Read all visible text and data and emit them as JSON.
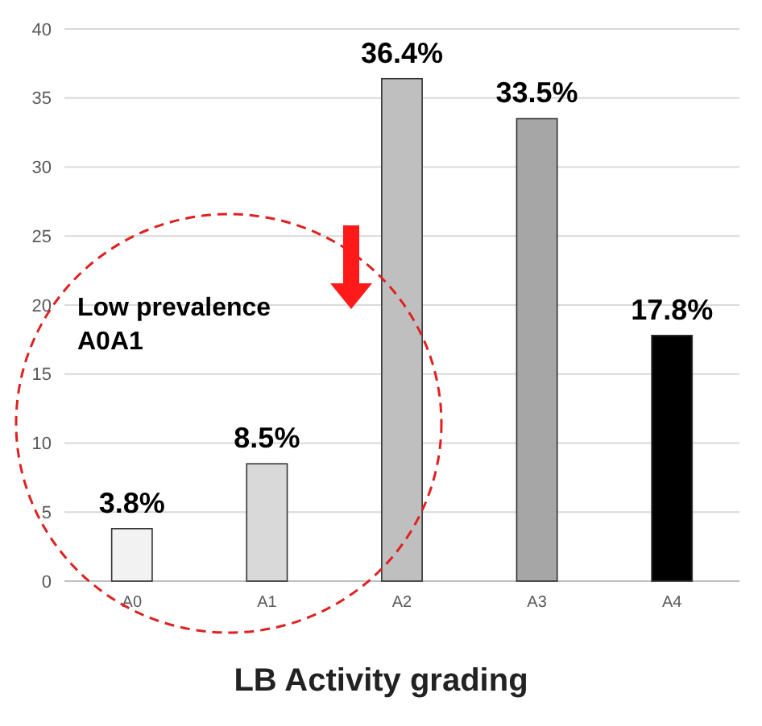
{
  "chart_data": {
    "type": "bar",
    "title": "LB Activity grading",
    "categories": [
      "A0",
      "A1",
      "A2",
      "A3",
      "A4"
    ],
    "values": [
      3.8,
      8.5,
      36.4,
      33.5,
      17.8
    ],
    "colors": [
      "#f2f2f2",
      "#d9d9d9",
      "#bfbfbf",
      "#a6a6a6",
      "#000000"
    ],
    "value_labels": [
      "3.8%",
      "8.5%",
      "36.4%",
      "33.5%",
      "17.8%"
    ],
    "ylim": [
      0,
      40
    ],
    "yticks": [
      0,
      5,
      10,
      15,
      20,
      25,
      30,
      35,
      40
    ],
    "grid": "y",
    "annotations": [
      "Low prevalence\nA0A1"
    ]
  }
}
